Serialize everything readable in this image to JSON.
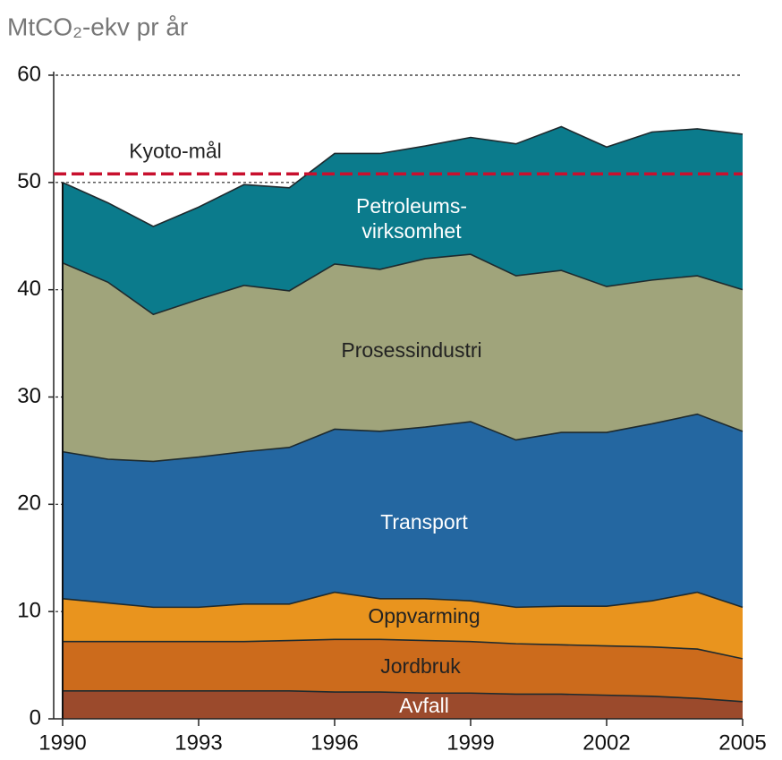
{
  "chart_data": {
    "type": "stacked_area",
    "title": "MtCO₂-ekv pr år",
    "x": [
      1990,
      1991,
      1992,
      1993,
      1994,
      1995,
      1996,
      1997,
      1998,
      1999,
      2000,
      2001,
      2002,
      2003,
      2004,
      2005
    ],
    "xlim": [
      1990,
      2005
    ],
    "xticks": [
      1990,
      1993,
      1996,
      1999,
      2002,
      2005
    ],
    "ylim": [
      0,
      60
    ],
    "yticks": [
      0,
      10,
      20,
      30,
      40,
      50,
      60
    ],
    "grid": true,
    "series": [
      {
        "name": "Avfall",
        "color": "#9b4a2c",
        "values": [
          2.6,
          2.6,
          2.6,
          2.6,
          2.6,
          2.6,
          2.5,
          2.5,
          2.4,
          2.4,
          2.3,
          2.3,
          2.2,
          2.1,
          1.9,
          1.6
        ]
      },
      {
        "name": "Jordbruk",
        "color": "#cc6b1c",
        "values": [
          4.6,
          4.6,
          4.6,
          4.6,
          4.6,
          4.7,
          4.9,
          4.9,
          4.9,
          4.8,
          4.7,
          4.6,
          4.6,
          4.6,
          4.6,
          4.0
        ]
      },
      {
        "name": "Oppvarming",
        "color": "#e9941e",
        "values": [
          4.0,
          3.6,
          3.2,
          3.2,
          3.5,
          3.4,
          4.4,
          3.8,
          3.9,
          3.8,
          3.4,
          3.6,
          3.7,
          4.3,
          5.3,
          4.8
        ]
      },
      {
        "name": "Transport",
        "color": "#2467a1",
        "values": [
          13.7,
          13.4,
          13.6,
          14.0,
          14.2,
          14.6,
          15.2,
          15.6,
          16.0,
          16.7,
          15.6,
          16.2,
          16.2,
          16.5,
          16.6,
          16.4
        ]
      },
      {
        "name": "Prosessindustri",
        "color": "#a0a47b",
        "values": [
          17.6,
          16.5,
          13.7,
          14.7,
          15.5,
          14.6,
          15.4,
          15.1,
          15.7,
          15.6,
          15.3,
          15.1,
          13.6,
          13.4,
          12.9,
          13.2
        ]
      },
      {
        "name": "Petroleums-virksomhet",
        "color": "#0b7b8c",
        "values": [
          7.5,
          7.4,
          8.2,
          8.6,
          9.4,
          9.6,
          10.3,
          10.8,
          10.5,
          10.9,
          12.3,
          13.4,
          13.0,
          13.8,
          13.7,
          14.5
        ]
      }
    ],
    "kyoto": {
      "label": "Kyoto-mål",
      "value": 50.8,
      "color": "#c8102e"
    }
  }
}
